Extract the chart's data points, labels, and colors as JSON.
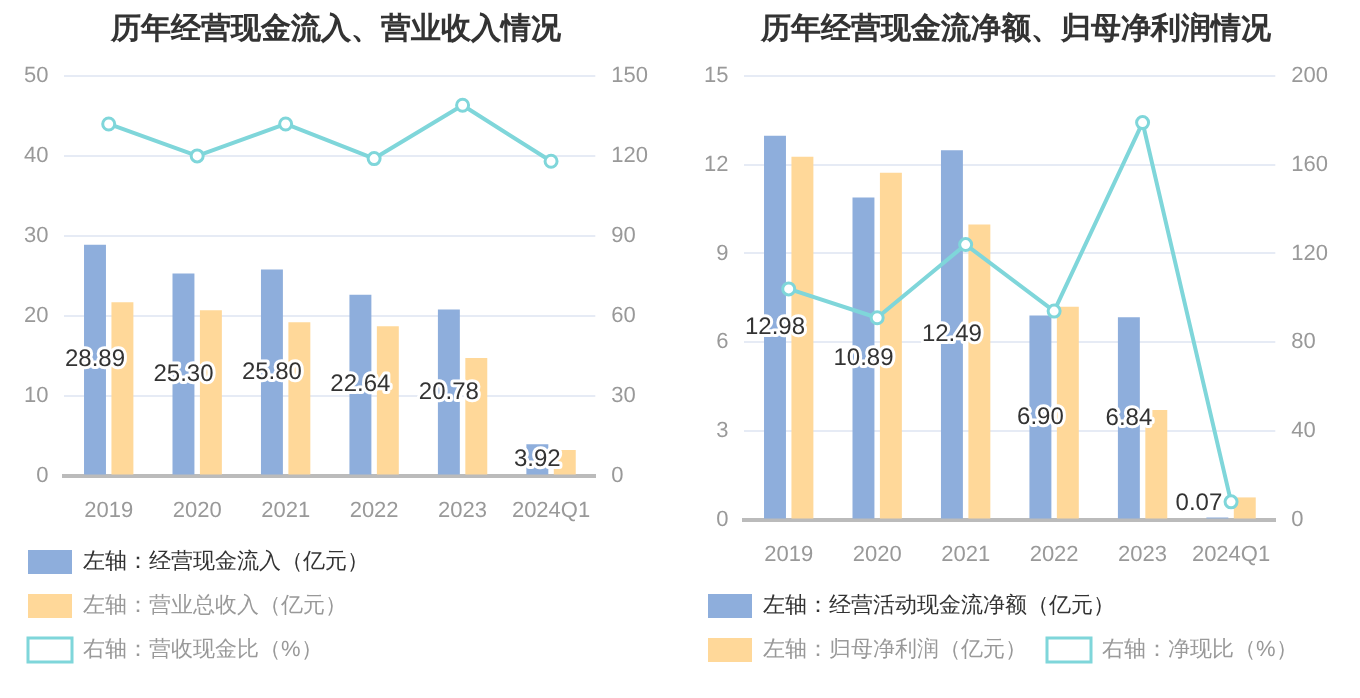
{
  "chart_data": [
    {
      "type": "bar",
      "title": "历年经营现金流入、营业收入情况",
      "categories": [
        "2019",
        "2020",
        "2021",
        "2022",
        "2023",
        "2024Q1"
      ],
      "series": [
        {
          "name": "左轴：经营现金流入（亿元）",
          "color": "#8eaedc",
          "values": [
            28.89,
            25.3,
            25.8,
            22.64,
            20.78,
            3.92
          ],
          "value_labels": [
            "28.89",
            "25.30",
            "25.80",
            "22.64",
            "20.78",
            "3.92"
          ]
        },
        {
          "name": "左轴：营业总收入（亿元）",
          "color": "#ffd899",
          "values": [
            21.7,
            20.7,
            19.2,
            18.7,
            14.7,
            3.2
          ]
        },
        {
          "name": "右轴：营收现金比（%）",
          "type": "line",
          "axis": "y2",
          "color": "#7fd6da",
          "marker": "circle",
          "values": [
            132,
            120,
            132,
            119,
            139,
            118
          ]
        }
      ],
      "ylim": [
        0,
        50
      ],
      "yticks": [
        0,
        10,
        20,
        30,
        40,
        50
      ],
      "y2lim": [
        0,
        150
      ],
      "y2ticks": [
        0,
        30,
        60,
        90,
        120,
        150
      ],
      "grid": "y",
      "legend": "bottom"
    },
    {
      "type": "bar",
      "title": "历年经营现金流净额、归母净利润情况",
      "categories": [
        "2019",
        "2020",
        "2021",
        "2022",
        "2023",
        "2024Q1"
      ],
      "series": [
        {
          "name": "左轴：经营活动现金流净额（亿元）",
          "color": "#8eaedc",
          "values": [
            12.98,
            10.89,
            12.49,
            6.9,
            6.84,
            0.07
          ],
          "value_labels": [
            "12.98",
            "10.89",
            "12.49",
            "6.90",
            "6.84",
            "0.07"
          ]
        },
        {
          "name": "左轴：归母净利润（亿元）",
          "color": "#ffd899",
          "values": [
            12.27,
            11.73,
            9.98,
            7.2,
            3.71,
            0.75
          ]
        },
        {
          "name": "右轴：净现比（%）",
          "type": "line",
          "axis": "y2",
          "color": "#7fd6da",
          "marker": "circle",
          "values": [
            104,
            91,
            124,
            94,
            179,
            8
          ]
        }
      ],
      "ylim": [
        0,
        15
      ],
      "yticks": [
        0,
        3,
        6,
        9,
        12,
        15
      ],
      "y2lim": [
        0,
        200
      ],
      "y2ticks": [
        0,
        40,
        80,
        120,
        160,
        200
      ],
      "grid": "y",
      "legend": "bottom"
    }
  ]
}
